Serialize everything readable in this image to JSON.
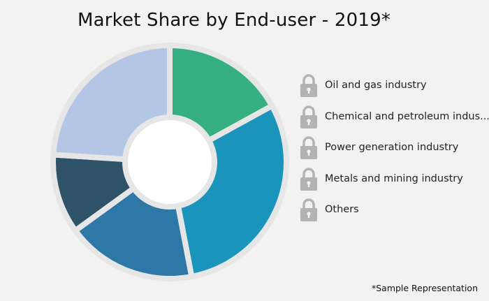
{
  "chart_data": {
    "type": "pie",
    "style": "donut",
    "title": "Market Share by End-user - 2019*",
    "categories": [
      "Oil and gas industry",
      "Chemical and petroleum indus...",
      "Power generation industry",
      "Metals and mining industry",
      "Others"
    ],
    "legend": [
      {
        "label": "Oil and gas industry",
        "icon": "lock-icon"
      },
      {
        "label": "Chemical and petroleum indus...",
        "icon": "lock-icon"
      },
      {
        "label": "Power generation industry",
        "icon": "lock-icon"
      },
      {
        "label": "Metals and mining industry",
        "icon": "lock-icon"
      },
      {
        "label": "Others",
        "icon": "lock-icon"
      }
    ],
    "legend_position": "right",
    "slices": [
      {
        "value": 17.0,
        "color": "#36b083"
      },
      {
        "value": 30.0,
        "color": "#1a94bb"
      },
      {
        "value": 18.0,
        "color": "#2d78a6"
      },
      {
        "value": 11.0,
        "color": "#2e5268"
      },
      {
        "value": 24.0,
        "color": "#b4c6e6"
      }
    ],
    "footnote": "*Sample Representation"
  },
  "colors": {
    "background": "#f2f2f2",
    "lock_icon": "#b3b3b3",
    "separator": "#e6e6e6"
  }
}
